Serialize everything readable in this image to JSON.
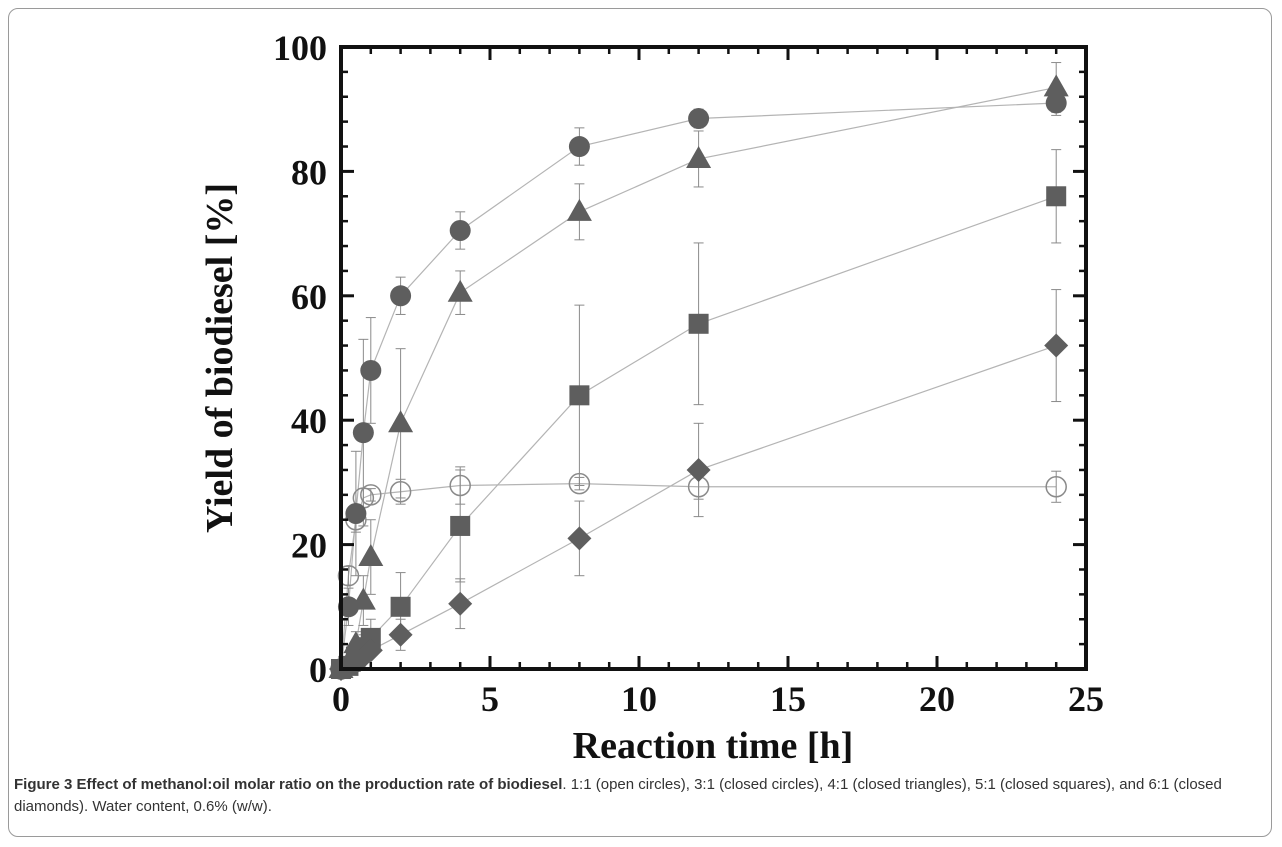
{
  "caption": {
    "lead": "Figure 3 Effect of methanol:oil molar ratio on the production rate of biodiesel",
    "rest": ". 1:1 (open circles), 3:1 (closed circles), 4:1 (closed triangles), 5:1 (closed squares), and 6:1 (closed diamonds). Water content, 0.6% (w/w)."
  },
  "chart_data": {
    "type": "scatter",
    "title": "",
    "xlabel": "Reaction time [h]",
    "ylabel": "Yield of biodiesel [%]",
    "xlim": [
      0,
      25
    ],
    "ylim": [
      0,
      100
    ],
    "xticks": [
      0,
      5,
      10,
      15,
      20,
      25
    ],
    "yticks": [
      0,
      20,
      40,
      60,
      80,
      100
    ],
    "grid": false,
    "line_color": "#b4b4b4",
    "marker_color": "#5e5e5e",
    "series": [
      {
        "marker": "open-circle",
        "x": [
          0,
          0.25,
          0.5,
          0.75,
          1,
          2,
          4,
          8,
          12,
          24
        ],
        "y": [
          0,
          15,
          24,
          27.5,
          28,
          28.5,
          29.5,
          29.8,
          29.3,
          29.3
        ],
        "err": [
          0,
          1.5,
          2,
          1.5,
          1,
          2,
          3,
          1,
          2,
          2.5
        ]
      },
      {
        "marker": "closed-circle",
        "x": [
          0,
          0.25,
          0.5,
          0.75,
          1,
          2,
          4,
          8,
          12,
          24
        ],
        "y": [
          0,
          10,
          25,
          38,
          48,
          60,
          70.5,
          84,
          88.5,
          91
        ],
        "err": [
          0,
          3,
          10,
          15,
          8.5,
          3,
          3,
          3,
          1.5,
          2
        ]
      },
      {
        "marker": "closed-triangle",
        "x": [
          0,
          0.25,
          0.5,
          0.75,
          1,
          2,
          4,
          8,
          12,
          24
        ],
        "y": [
          0,
          1,
          4,
          11,
          18,
          39.5,
          60.5,
          73.5,
          82,
          93.5
        ],
        "err": [
          0,
          1,
          2,
          4,
          6,
          12,
          3.5,
          4.5,
          4.5,
          4
        ]
      },
      {
        "marker": "closed-square",
        "x": [
          0,
          0.25,
          0.5,
          0.75,
          1,
          2,
          4,
          8,
          12,
          24
        ],
        "y": [
          0,
          0.5,
          2,
          3.5,
          5,
          10,
          23,
          44,
          55.5,
          76
        ],
        "err": [
          0,
          0.5,
          1,
          2,
          3,
          5.5,
          9,
          14.5,
          13,
          7.5
        ]
      },
      {
        "marker": "closed-diamond",
        "x": [
          0,
          0.25,
          0.5,
          0.75,
          1,
          2,
          4,
          8,
          12,
          24
        ],
        "y": [
          0,
          0.5,
          1,
          2,
          3,
          5.5,
          10.5,
          21,
          32,
          52
        ],
        "err": [
          0,
          0.5,
          0.5,
          1,
          1,
          2.5,
          4,
          6,
          7.5,
          9
        ]
      }
    ]
  }
}
